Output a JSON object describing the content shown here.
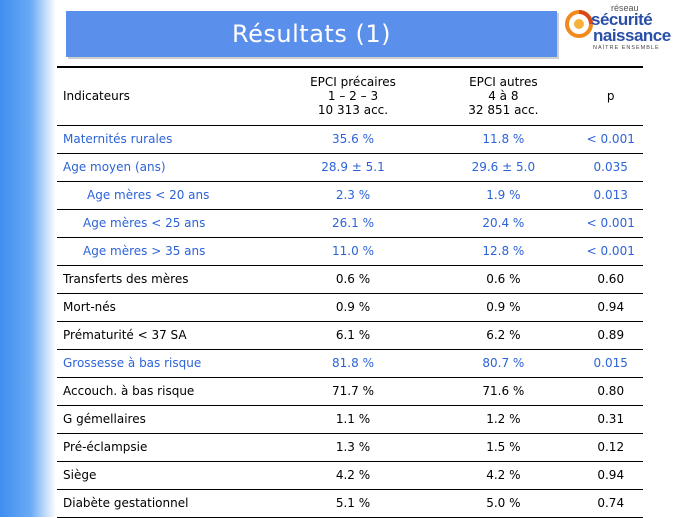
{
  "title": "Résultats (1)",
  "logo": {
    "top": "réseau",
    "line1": "sécurité",
    "line2": "naissance",
    "tagline": "NAÎTRE ENSEMBLE"
  },
  "table": {
    "headers": {
      "indicateurs": "Indicateurs",
      "col_a": [
        "EPCI précaires",
        "1 – 2 – 3",
        "10 313 acc."
      ],
      "col_b": [
        "EPCI autres",
        "4 à 8",
        "32 851 acc."
      ],
      "p": "p"
    },
    "rows": [
      {
        "label": "Maternités rurales",
        "a": "35.6 %",
        "b": "11.8 %",
        "p": "< 0.001",
        "color": "#2c63d8"
      },
      {
        "label": "Age moyen (ans)",
        "a": "28.9 ± 5.1",
        "b": "29.6 ± 5.0",
        "p": "0.035",
        "color": "#2c63d8"
      },
      {
        "label": "Age mères < 20 ans",
        "a": "2.3 %",
        "b": "1.9 %",
        "p": "0.013",
        "color": "#2c63d8"
      },
      {
        "label": "Age mères < 25 ans",
        "a": "26.1 %",
        "b": "20.4 %",
        "p": "< 0.001",
        "color": "#2c63d8"
      },
      {
        "label": "Age mères > 35 ans",
        "a": "11.0 %",
        "b": "12.8 %",
        "p": "< 0.001",
        "color": "#2c63d8"
      },
      {
        "label": "Transferts des mères",
        "a": "0.6 %",
        "b": "0.6 %",
        "p": "0.60",
        "color": "#000000"
      },
      {
        "label": "Mort-nés",
        "a": "0.9 %",
        "b": "0.9 %",
        "p": "0.94",
        "color": "#000000"
      },
      {
        "label": "Prématurité < 37 SA",
        "a": "6.1 %",
        "b": "6.2 %",
        "p": "0.89",
        "color": "#000000"
      },
      {
        "label": "Grossesse à bas risque",
        "a": "81.8 %",
        "b": "80.7 %",
        "p": "0.015",
        "color": "#2c63d8"
      },
      {
        "label": "Accouch. à bas risque",
        "a": "71.7 %",
        "b": "71.6 %",
        "p": "0.80",
        "color": "#000000"
      },
      {
        "label": "G gémellaires",
        "a": "1.1 %",
        "b": "1.2 %",
        "p": "0.31",
        "color": "#000000"
      },
      {
        "label": "Pré-éclampsie",
        "a": "1.3 %",
        "b": "1.5 %",
        "p": "0.12",
        "color": "#000000"
      },
      {
        "label": "Siège",
        "a": "4.2 %",
        "b": "4.2 %",
        "p": "0.94",
        "color": "#000000"
      },
      {
        "label": "Diabète gestationnel",
        "a": "5.1 %",
        "b": "5.0 %",
        "p": "0.74",
        "color": "#000000"
      }
    ]
  }
}
